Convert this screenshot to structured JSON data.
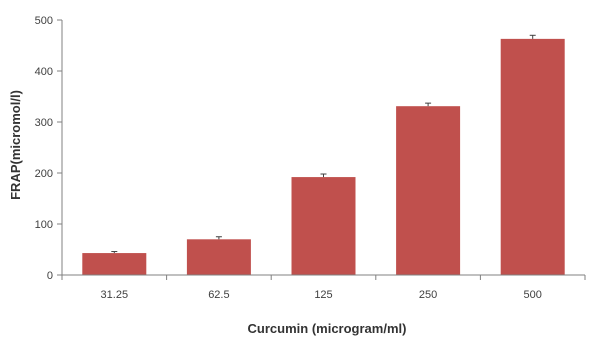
{
  "chart_data": {
    "type": "bar",
    "categories": [
      "31.25",
      "62.5",
      "125",
      "250",
      "500"
    ],
    "series": [
      {
        "values": [
          43,
          70,
          192,
          331,
          463
        ],
        "errors": [
          3,
          5,
          6,
          6,
          7
        ],
        "color": "#c0504d"
      }
    ],
    "xlabel": "Curcumin (microgram/ml)",
    "ylabel": "FRAP(micromol/l)",
    "ylim": [
      0,
      500
    ],
    "yticks": [
      0,
      100,
      200,
      300,
      400,
      500
    ],
    "grid": false,
    "legend": "none"
  }
}
